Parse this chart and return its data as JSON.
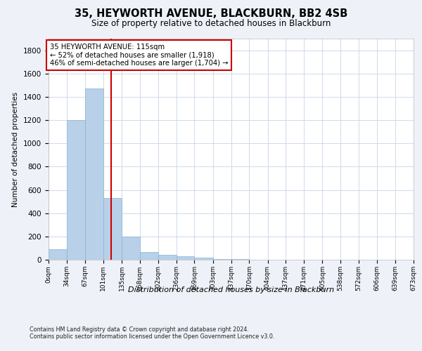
{
  "title_line1": "35, HEYWORTH AVENUE, BLACKBURN, BB2 4SB",
  "title_line2": "Size of property relative to detached houses in Blackburn",
  "xlabel": "Distribution of detached houses by size in Blackburn",
  "ylabel": "Number of detached properties",
  "bar_color": "#b8d0e8",
  "bar_edge_color": "#8ab4d4",
  "vline_color": "#cc0000",
  "vline_x": 115,
  "annotation_text": "35 HEYWORTH AVENUE: 115sqm\n← 52% of detached houses are smaller (1,918)\n46% of semi-detached houses are larger (1,704) →",
  "annotation_box_color": "#ffffff",
  "annotation_box_edge": "#cc0000",
  "footnote": "Contains HM Land Registry data © Crown copyright and database right 2024.\nContains public sector information licensed under the Open Government Licence v3.0.",
  "bin_edges": [
    0,
    34,
    67,
    101,
    135,
    168,
    202,
    236,
    269,
    303,
    337,
    370,
    404,
    437,
    471,
    505,
    538,
    572,
    606,
    639,
    673
  ],
  "bin_labels": [
    "0sqm",
    "34sqm",
    "67sqm",
    "101sqm",
    "135sqm",
    "168sqm",
    "202sqm",
    "236sqm",
    "269sqm",
    "303sqm",
    "337sqm",
    "370sqm",
    "404sqm",
    "437sqm",
    "471sqm",
    "505sqm",
    "538sqm",
    "572sqm",
    "606sqm",
    "639sqm",
    "673sqm"
  ],
  "bar_heights": [
    90,
    1200,
    1470,
    530,
    200,
    65,
    40,
    30,
    20,
    5,
    5,
    0,
    0,
    0,
    0,
    0,
    0,
    0,
    0,
    0
  ],
  "ylim": [
    0,
    1900
  ],
  "yticks": [
    0,
    200,
    400,
    600,
    800,
    1000,
    1200,
    1400,
    1600,
    1800
  ],
  "background_color": "#eef2f8",
  "plot_bg_color": "#ffffff",
  "grid_color": "#c8d4e8"
}
